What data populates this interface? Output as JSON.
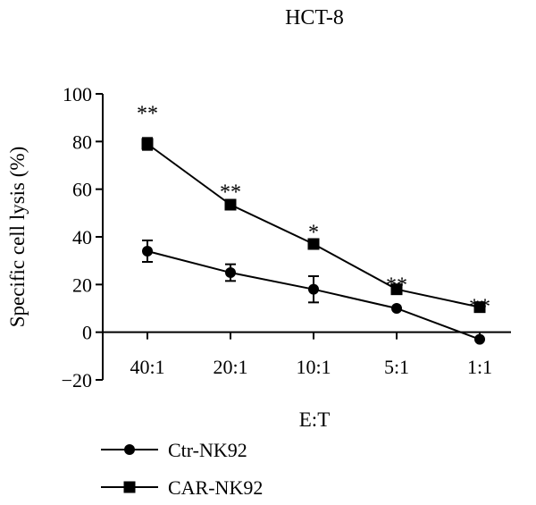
{
  "chart_data": {
    "type": "line",
    "title": "HCT-8",
    "xlabel": "E:T",
    "ylabel": "Specific cell lysis (%)",
    "categories": [
      "40:1",
      "20:1",
      "10:1",
      "5:1",
      "1:1"
    ],
    "ylim": [
      -20,
      100
    ],
    "yticks": [
      -20,
      0,
      20,
      40,
      60,
      80,
      100
    ],
    "ytick_labels": [
      "−20",
      "0",
      "20",
      "40",
      "60",
      "80",
      "100"
    ],
    "grid": false,
    "legend_position": "bottom-left",
    "series": [
      {
        "name": "Ctr-NK92",
        "marker": "circle",
        "color": "#000000",
        "values": [
          34,
          25,
          18,
          10,
          -3
        ],
        "errors": [
          4.5,
          3.5,
          5.5,
          0,
          0
        ]
      },
      {
        "name": "CAR-NK92",
        "marker": "square",
        "color": "#000000",
        "values": [
          79,
          53.5,
          37,
          18,
          10.5
        ],
        "errors": [
          2.5,
          0,
          0,
          0,
          0
        ]
      }
    ],
    "annotations": [
      {
        "category": "40:1",
        "text": "**",
        "y": 95
      },
      {
        "category": "20:1",
        "text": "**",
        "y": 62
      },
      {
        "category": "10:1",
        "text": "*",
        "y": 45
      },
      {
        "category": "5:1",
        "text": "**",
        "y": 23
      },
      {
        "category": "1:1",
        "text": "**",
        "y": 14
      }
    ]
  }
}
